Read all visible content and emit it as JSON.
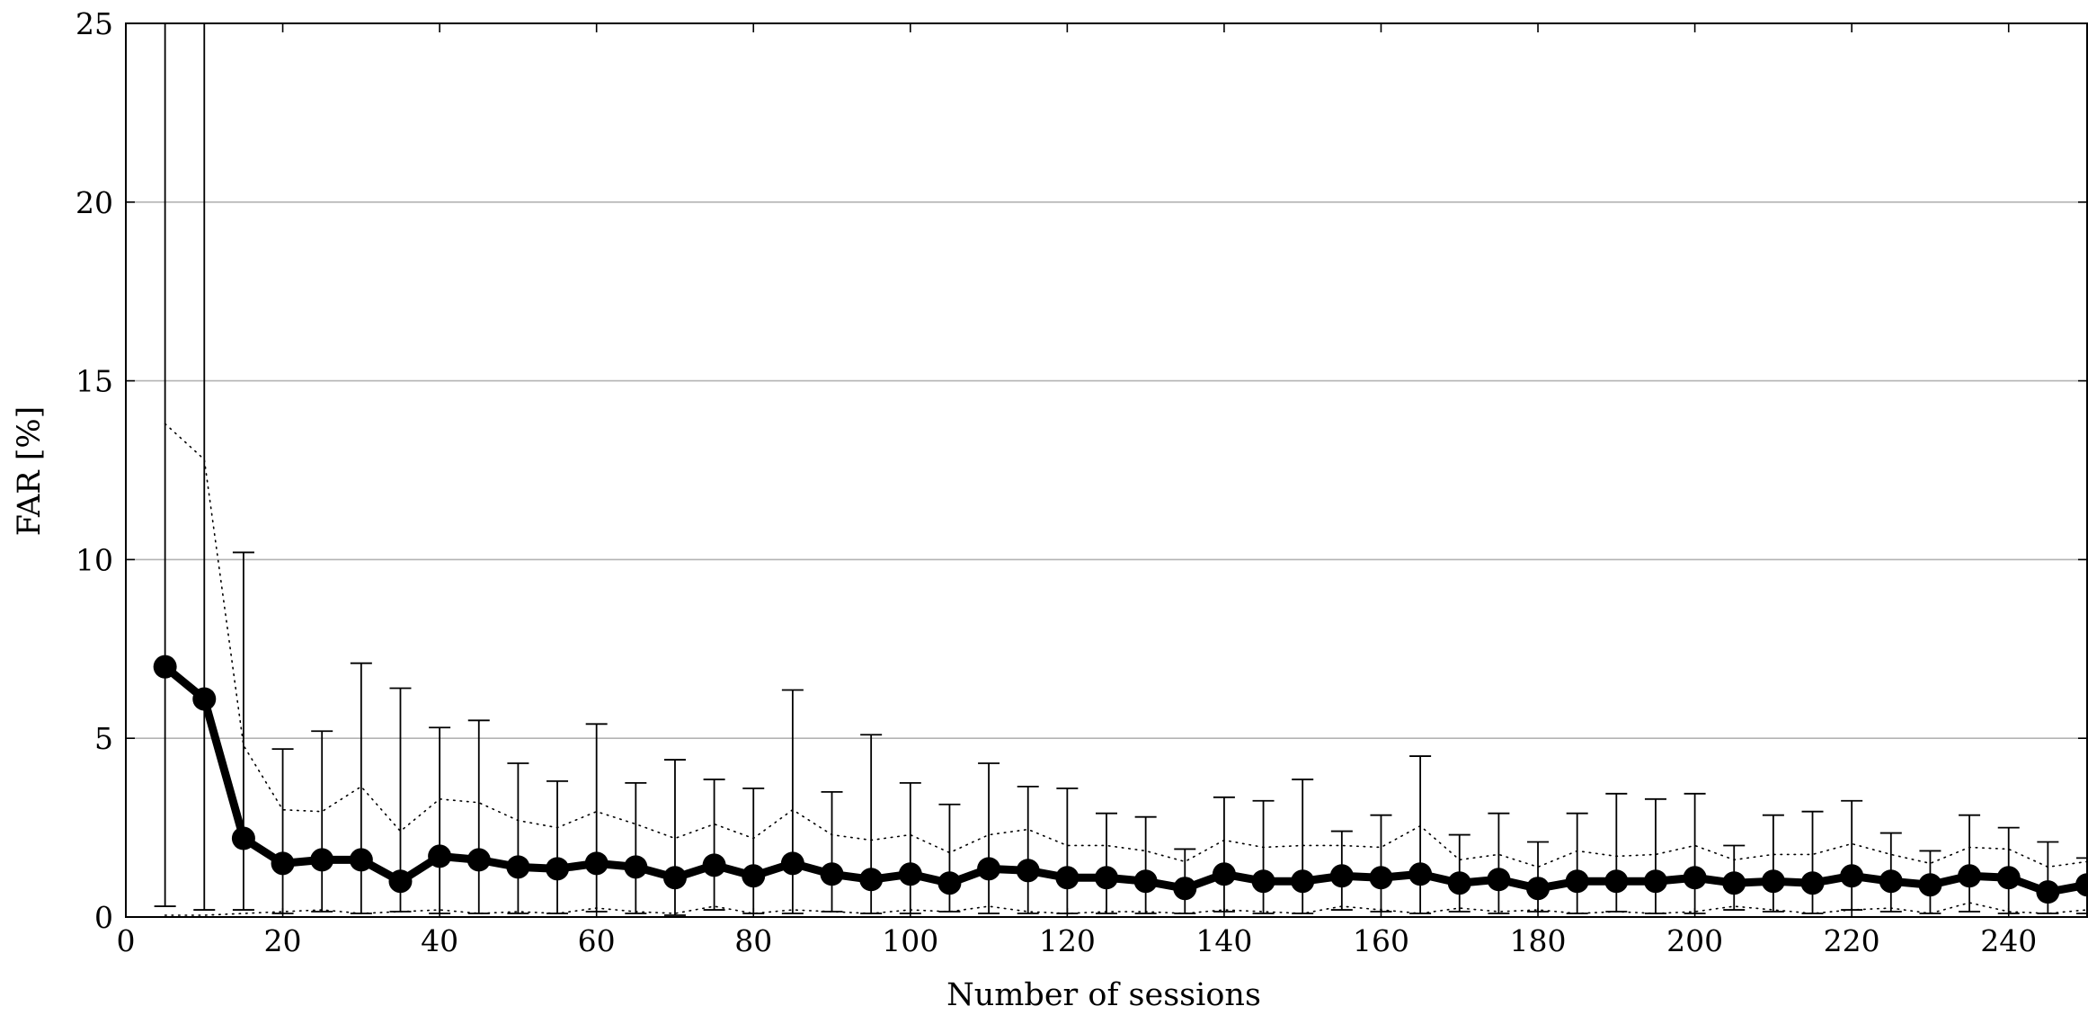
{
  "chart_data": {
    "type": "line",
    "title": "",
    "xlabel": "Number of sessions",
    "ylabel": "FAR [%]",
    "xlim": [
      0,
      250
    ],
    "ylim": [
      0,
      25
    ],
    "xticks": [
      0,
      20,
      40,
      60,
      80,
      100,
      120,
      140,
      160,
      180,
      200,
      220,
      240
    ],
    "yticks": [
      0,
      5,
      10,
      15,
      20,
      25
    ],
    "grid": "horizontal major lines",
    "legend": "none",
    "x": [
      5,
      10,
      15,
      20,
      25,
      30,
      35,
      40,
      45,
      50,
      55,
      60,
      65,
      70,
      75,
      80,
      85,
      90,
      95,
      100,
      105,
      110,
      115,
      120,
      125,
      130,
      135,
      140,
      145,
      150,
      155,
      160,
      165,
      170,
      175,
      180,
      185,
      190,
      195,
      200,
      205,
      210,
      215,
      220,
      225,
      230,
      235,
      240,
      245,
      250
    ],
    "series": [
      {
        "style": "thick solid line with filled circle markers",
        "values": [
          7.0,
          6.1,
          2.2,
          1.5,
          1.6,
          1.6,
          1.0,
          1.7,
          1.6,
          1.4,
          1.35,
          1.5,
          1.4,
          1.1,
          1.45,
          1.15,
          1.5,
          1.2,
          1.05,
          1.2,
          0.95,
          1.35,
          1.3,
          1.1,
          1.1,
          1.0,
          0.8,
          1.2,
          1.0,
          1.0,
          1.15,
          1.1,
          1.2,
          0.95,
          1.05,
          0.8,
          1.0,
          1.0,
          1.0,
          1.1,
          0.95,
          1.0,
          0.95,
          1.15,
          1.0,
          0.9,
          1.15,
          1.1,
          0.7,
          0.9
        ],
        "error_low": [
          0.3,
          0.2,
          0.2,
          0.1,
          0.15,
          0.1,
          0.15,
          0.1,
          0.1,
          0.1,
          0.1,
          0.15,
          0.1,
          0.05,
          0.2,
          0.1,
          0.1,
          0.15,
          0.1,
          0.1,
          0.15,
          0.1,
          0.1,
          0.1,
          0.1,
          0.1,
          0.1,
          0.15,
          0.1,
          0.1,
          0.2,
          0.15,
          0.1,
          0.15,
          0.1,
          0.15,
          0.1,
          0.15,
          0.1,
          0.1,
          0.2,
          0.15,
          0.1,
          0.2,
          0.15,
          0.1,
          0.15,
          0.1,
          0.1,
          0.1
        ],
        "error_high": [
          25,
          25,
          10.2,
          4.7,
          5.2,
          7.1,
          6.4,
          5.3,
          5.5,
          4.3,
          3.8,
          5.4,
          3.75,
          4.4,
          3.85,
          3.6,
          6.35,
          3.5,
          5.1,
          3.75,
          3.15,
          4.3,
          3.65,
          3.6,
          2.9,
          2.8,
          1.9,
          3.35,
          3.25,
          3.85,
          2.4,
          2.85,
          4.5,
          2.3,
          2.9,
          2.1,
          2.9,
          3.45,
          3.3,
          3.45,
          2.0,
          2.85,
          2.95,
          3.25,
          2.35,
          1.85,
          2.85,
          2.5,
          2.1,
          1.65
        ]
      },
      {
        "style": "dotted upper band",
        "values": [
          13.8,
          12.8,
          4.8,
          3.0,
          2.95,
          3.65,
          2.4,
          3.3,
          3.2,
          2.7,
          2.5,
          2.95,
          2.6,
          2.2,
          2.6,
          2.2,
          3.0,
          2.3,
          2.15,
          2.3,
          1.8,
          2.3,
          2.45,
          2.0,
          2.0,
          1.85,
          1.55,
          2.15,
          1.95,
          2.0,
          2.0,
          1.95,
          2.55,
          1.6,
          1.75,
          1.4,
          1.85,
          1.7,
          1.75,
          2.0,
          1.6,
          1.75,
          1.75,
          2.05,
          1.75,
          1.5,
          1.95,
          1.9,
          1.4,
          1.55
        ]
      },
      {
        "style": "dotted lower band",
        "values": [
          0.05,
          0.05,
          0.1,
          0.15,
          0.2,
          0.1,
          0.15,
          0.2,
          0.1,
          0.15,
          0.1,
          0.25,
          0.15,
          0.1,
          0.3,
          0.1,
          0.2,
          0.15,
          0.1,
          0.2,
          0.15,
          0.3,
          0.15,
          0.1,
          0.15,
          0.15,
          0.1,
          0.2,
          0.15,
          0.1,
          0.3,
          0.2,
          0.1,
          0.25,
          0.15,
          0.2,
          0.1,
          0.15,
          0.1,
          0.15,
          0.3,
          0.2,
          0.1,
          0.2,
          0.25,
          0.1,
          0.4,
          0.15,
          0.1,
          0.2
        ]
      }
    ]
  }
}
